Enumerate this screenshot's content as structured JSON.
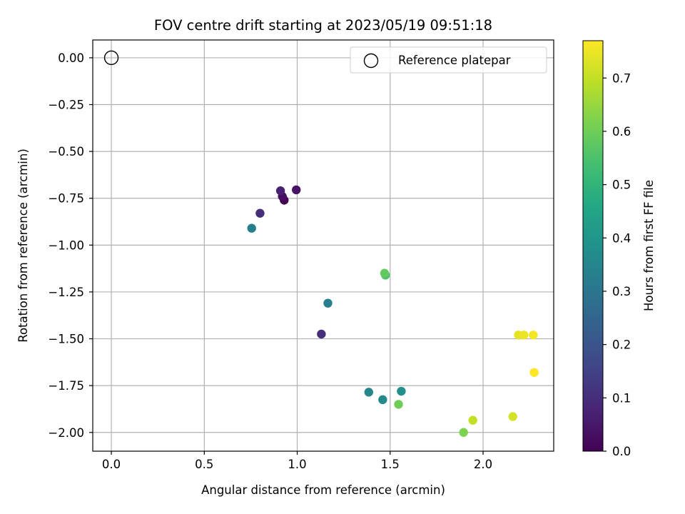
{
  "chart_data": {
    "type": "scatter",
    "title": "FOV centre drift starting at 2023/05/19 09:51:18",
    "xlabel": "Angular distance from reference (arcmin)",
    "ylabel": "Rotation from reference (arcmin)",
    "xlim": [
      -0.1,
      2.38
    ],
    "ylim": [
      -2.1,
      0.095
    ],
    "xticks": [
      0.0,
      0.5,
      1.0,
      1.5,
      2.0
    ],
    "xtick_labels": [
      "0.0",
      "0.5",
      "1.0",
      "1.5",
      "2.0"
    ],
    "yticks": [
      0.0,
      -0.25,
      -0.5,
      -0.75,
      -1.0,
      -1.25,
      -1.5,
      -1.75,
      -2.0
    ],
    "ytick_labels": [
      "0.00",
      "−0.25",
      "−0.50",
      "−0.75",
      "−1.00",
      "−1.25",
      "−1.50",
      "−1.75",
      "−2.00"
    ],
    "grid": true,
    "colormap": "viridis",
    "colorbar": {
      "label": "Hours from first FF file",
      "range": [
        0,
        0.77
      ],
      "ticks": [
        0.0,
        0.1,
        0.2,
        0.3,
        0.4,
        0.5,
        0.6,
        0.7
      ],
      "tick_labels": [
        "0.0",
        "0.1",
        "0.2",
        "0.3",
        "0.4",
        "0.5",
        "0.6",
        "0.7"
      ]
    },
    "legend": {
      "entries": [
        "Reference platepar"
      ],
      "placement": "top-right"
    },
    "reference_point": {
      "x": 0.0,
      "y": 0.0,
      "marker": "hollow-circle"
    },
    "points": [
      {
        "x": 0.93,
        "y": -0.76,
        "c": 0.0
      },
      {
        "x": 0.92,
        "y": -0.74,
        "c": 0.03
      },
      {
        "x": 0.995,
        "y": -0.705,
        "c": 0.04
      },
      {
        "x": 0.91,
        "y": -0.71,
        "c": 0.07
      },
      {
        "x": 0.8,
        "y": -0.83,
        "c": 0.1
      },
      {
        "x": 1.13,
        "y": -1.475,
        "c": 0.1
      },
      {
        "x": 0.755,
        "y": -0.91,
        "c": 0.33
      },
      {
        "x": 1.165,
        "y": -1.31,
        "c": 0.33
      },
      {
        "x": 1.385,
        "y": -1.785,
        "c": 0.35
      },
      {
        "x": 1.46,
        "y": -1.825,
        "c": 0.36
      },
      {
        "x": 1.56,
        "y": -1.78,
        "c": 0.38
      },
      {
        "x": 1.475,
        "y": -1.16,
        "c": 0.55
      },
      {
        "x": 1.47,
        "y": -1.15,
        "c": 0.58
      },
      {
        "x": 1.545,
        "y": -1.85,
        "c": 0.6
      },
      {
        "x": 1.895,
        "y": -2.0,
        "c": 0.62
      },
      {
        "x": 1.945,
        "y": -1.935,
        "c": 0.7
      },
      {
        "x": 2.16,
        "y": -1.915,
        "c": 0.72
      },
      {
        "x": 2.19,
        "y": -1.48,
        "c": 0.74
      },
      {
        "x": 2.22,
        "y": -1.48,
        "c": 0.75
      },
      {
        "x": 2.27,
        "y": -1.48,
        "c": 0.76
      },
      {
        "x": 2.275,
        "y": -1.68,
        "c": 0.77
      }
    ]
  }
}
